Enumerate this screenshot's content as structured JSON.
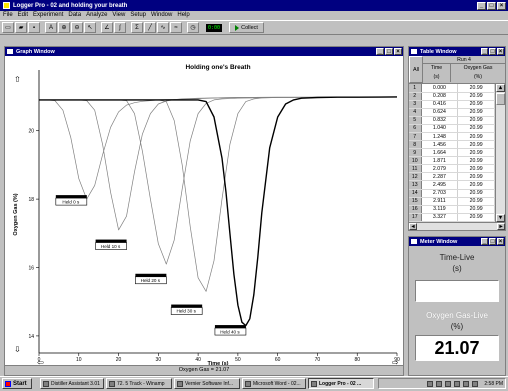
{
  "app": {
    "title": "Logger Pro - 02 and holding your breath"
  },
  "menu": [
    "File",
    "Edit",
    "Experiment",
    "Data",
    "Analyze",
    "View",
    "Setup",
    "Window",
    "Help"
  ],
  "toolbar": {
    "counter": "0:00",
    "collect_label": "Collect"
  },
  "graph": {
    "window_title": "Graph Window",
    "status": "Oxygen Gas = 21.07",
    "chart_data": {
      "type": "line",
      "title": "Holding one's Breath",
      "xlabel": "Time (s)",
      "ylabel": "Oxygen Gas (%)",
      "xlim": [
        0,
        90
      ],
      "ylim": [
        13.5,
        21.6
      ],
      "xticks": [
        0,
        10,
        20,
        30,
        40,
        50,
        60,
        70,
        80,
        90
      ],
      "yticks": [
        14,
        16,
        18,
        20
      ],
      "grid": false,
      "series": [
        {
          "x": [
            0,
            2,
            4,
            6,
            8,
            10,
            12,
            14,
            16,
            18,
            20,
            22,
            24,
            26,
            28,
            30,
            35,
            40,
            45,
            50,
            60,
            70,
            80,
            90
          ],
          "y": [
            20.9,
            20.9,
            20.88,
            20.6,
            19.8,
            18.6,
            18.0,
            18.4,
            19.3,
            20.1,
            20.55,
            20.75,
            20.82,
            20.86,
            20.88,
            20.9,
            20.92,
            20.94,
            20.96,
            20.97,
            20.98,
            20.98,
            20.98,
            20.99
          ],
          "stroke": "#808080",
          "width": 0.7
        },
        {
          "x": [
            0,
            10,
            12,
            14,
            16,
            18,
            20,
            22,
            24,
            26,
            28,
            30,
            32,
            34,
            36,
            40,
            45,
            50,
            60,
            70,
            80,
            90
          ],
          "y": [
            20.9,
            20.9,
            20.88,
            20.6,
            19.6,
            18.2,
            17.1,
            17.5,
            18.8,
            19.9,
            20.5,
            20.78,
            20.87,
            20.91,
            20.93,
            20.95,
            20.96,
            20.97,
            20.98,
            20.98,
            20.98,
            20.99
          ],
          "stroke": "#808080",
          "width": 0.7
        },
        {
          "x": [
            0,
            20,
            22,
            24,
            26,
            28,
            30,
            32,
            34,
            36,
            38,
            40,
            42,
            44,
            46,
            50,
            55,
            60,
            70,
            80,
            90
          ],
          "y": [
            20.9,
            20.9,
            20.88,
            20.5,
            19.4,
            18.0,
            16.7,
            16.1,
            16.8,
            18.3,
            19.7,
            20.5,
            20.8,
            20.9,
            20.93,
            20.95,
            20.96,
            20.97,
            20.98,
            20.98,
            20.99
          ],
          "stroke": "#808080",
          "width": 0.7
        },
        {
          "x": [
            0,
            30,
            32,
            34,
            36,
            38,
            40,
            42,
            44,
            46,
            48,
            50,
            52,
            54,
            56,
            60,
            65,
            70,
            80,
            90
          ],
          "y": [
            20.9,
            20.9,
            20.85,
            20.3,
            19.0,
            17.2,
            15.7,
            15.3,
            16.2,
            18.0,
            19.6,
            20.5,
            20.85,
            20.93,
            20.96,
            20.97,
            20.97,
            20.98,
            20.98,
            20.99
          ],
          "stroke": "#808080",
          "width": 0.7
        },
        {
          "x": [
            0,
            40,
            42,
            44,
            46,
            47,
            48,
            49,
            50,
            51,
            52,
            53,
            54,
            55,
            56,
            58,
            60,
            62,
            64,
            66,
            70,
            75,
            80,
            90
          ],
          "y": [
            20.9,
            20.9,
            20.85,
            20.4,
            19.2,
            18.2,
            17.0,
            15.8,
            14.9,
            14.4,
            14.3,
            14.5,
            15.2,
            16.3,
            17.6,
            19.5,
            20.4,
            20.78,
            20.9,
            20.95,
            20.97,
            20.98,
            20.98,
            20.99
          ],
          "stroke": "#000000",
          "width": 1.4
        }
      ],
      "annotations": [
        {
          "text": "Held 0 s",
          "x": 8,
          "y": 18.0
        },
        {
          "text": "Held 10 s",
          "x": 18,
          "y": 16.7
        },
        {
          "text": "Held 20 s",
          "x": 28,
          "y": 15.7
        },
        {
          "text": "Held 30 s",
          "x": 37,
          "y": 14.8
        },
        {
          "text": "Held 40 s",
          "x": 48,
          "y": 14.2
        }
      ]
    }
  },
  "table": {
    "window_title": "Table Window",
    "run": "Run 4",
    "all_label": "All",
    "col1": "Time",
    "col1_unit": "(s)",
    "col2": "Oxygen Gas",
    "col2_unit": "(%)",
    "rows": [
      [
        "1",
        "0.000",
        "20.99"
      ],
      [
        "2",
        "0.208",
        "20.99"
      ],
      [
        "3",
        "0.416",
        "20.99"
      ],
      [
        "4",
        "0.624",
        "20.99"
      ],
      [
        "5",
        "0.832",
        "20.99"
      ],
      [
        "6",
        "1.040",
        "20.99"
      ],
      [
        "7",
        "1.248",
        "20.99"
      ],
      [
        "8",
        "1.456",
        "20.99"
      ],
      [
        "9",
        "1.664",
        "20.99"
      ],
      [
        "10",
        "1.871",
        "20.99"
      ],
      [
        "11",
        "2.079",
        "20.99"
      ],
      [
        "12",
        "2.287",
        "20.99"
      ],
      [
        "13",
        "2.495",
        "20.99"
      ],
      [
        "14",
        "2.703",
        "20.99"
      ],
      [
        "15",
        "2.911",
        "20.99"
      ],
      [
        "16",
        "3.119",
        "20.99"
      ],
      [
        "17",
        "3.327",
        "20.99"
      ]
    ]
  },
  "meter": {
    "window_title": "Meter Window",
    "time_label": "Time-Live",
    "time_unit": "(s)",
    "o2_label": "Oxygen Gas-Live",
    "o2_unit": "(%)",
    "o2_value": "21.07"
  },
  "taskbar": {
    "start": "Start",
    "items": [
      "Distiller Assistant 3.01",
      "72. 5 Track - Winamp",
      "Vernier Software Inf...",
      "Microsoft Word - 02...",
      "Logger Pro - 02 ..."
    ],
    "clock": "2:58 PM"
  }
}
